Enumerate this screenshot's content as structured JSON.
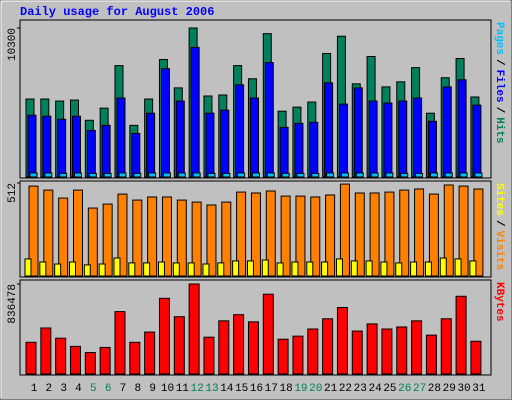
{
  "chart_data": [
    {
      "type": "bar",
      "title": "Daily usage for August 2006",
      "legend_separator": "/",
      "ylim": [
        0,
        10300
      ],
      "yticks": [
        10300
      ],
      "series": [
        {
          "name": "Pages",
          "color": "#00c0ff",
          "values": [
            280,
            280,
            250,
            280,
            250,
            250,
            280,
            250,
            280,
            280,
            280,
            280,
            250,
            250,
            280,
            280,
            280,
            250,
            250,
            250,
            280,
            280,
            280,
            280,
            280,
            250,
            250,
            280,
            280,
            280,
            280
          ]
        },
        {
          "name": "Files",
          "color": "#0000ff",
          "values": [
            4270,
            4200,
            3990,
            4200,
            3220,
            3570,
            5460,
            3010,
            4410,
            7490,
            5250,
            8960,
            4410,
            4620,
            6370,
            5460,
            7910,
            3430,
            3710,
            3780,
            6510,
            5040,
            6160,
            5250,
            5110,
            5250,
            5460,
            3850,
            6230,
            6720,
            4970
          ]
        },
        {
          "name": "Hits",
          "color": "#00805c",
          "values": [
            5390,
            5390,
            5250,
            5320,
            3920,
            4760,
            7700,
            3570,
            5390,
            8120,
            6160,
            10300,
            5600,
            5670,
            7700,
            6790,
            9910,
            4550,
            4830,
            5180,
            8540,
            9730,
            6440,
            8330,
            6230,
            6580,
            7560,
            4410,
            6860,
            8190,
            5530
          ]
        }
      ]
    },
    {
      "type": "bar",
      "legend_separator": "/",
      "ylim": [
        0,
        512
      ],
      "yticks": [
        512
      ],
      "series": [
        {
          "name": "Sites",
          "color": "#ffff00",
          "values": [
            94,
            77,
            66,
            77,
            61,
            66,
            99,
            72,
            72,
            77,
            72,
            72,
            66,
            72,
            83,
            83,
            88,
            72,
            77,
            77,
            77,
            94,
            83,
            83,
            77,
            72,
            77,
            77,
            99,
            94,
            83
          ]
        },
        {
          "name": "Visits",
          "color": "#ff8000",
          "values": [
            495,
            473,
            429,
            473,
            374,
            396,
            451,
            418,
            435,
            435,
            418,
            407,
            391,
            407,
            462,
            457,
            468,
            440,
            440,
            435,
            446,
            506,
            457,
            457,
            462,
            473,
            479,
            451,
            501,
            495,
            479
          ]
        }
      ]
    },
    {
      "type": "bar",
      "ylim": [
        0,
        836478
      ],
      "yticks": [
        836478
      ],
      "categories": [
        "1",
        "2",
        "3",
        "4",
        "5",
        "6",
        "7",
        "8",
        "9",
        "10",
        "11",
        "12",
        "13",
        "14",
        "15",
        "16",
        "17",
        "18",
        "19",
        "20",
        "21",
        "22",
        "23",
        "24",
        "25",
        "26",
        "27",
        "28",
        "29",
        "30",
        "31"
      ],
      "category_colors": [
        "#000000",
        "#000000",
        "#000000",
        "#000000",
        "#00805c",
        "#00805c",
        "#000000",
        "#000000",
        "#000000",
        "#000000",
        "#000000",
        "#00805c",
        "#00805c",
        "#000000",
        "#000000",
        "#000000",
        "#000000",
        "#000000",
        "#00805c",
        "#00805c",
        "#000000",
        "#000000",
        "#000000",
        "#000000",
        "#000000",
        "#00805c",
        "#00805c",
        "#000000",
        "#000000",
        "#000000",
        "#000000"
      ],
      "series": [
        {
          "name": "KBytes",
          "color": "#ff0000",
          "values": [
            294655,
            427725,
            332675,
            256635,
            199605,
            247130,
            579805,
            294655,
            389705,
            703370,
            532280,
            836478,
            342180,
            494260,
            551290,
            484755,
            741390,
            323170,
            351685,
            418220,
            513270,
            617825,
            399210,
            465745,
            418220,
            437230,
            494260,
            361190,
            513270,
            722380,
            304160
          ]
        }
      ]
    }
  ]
}
